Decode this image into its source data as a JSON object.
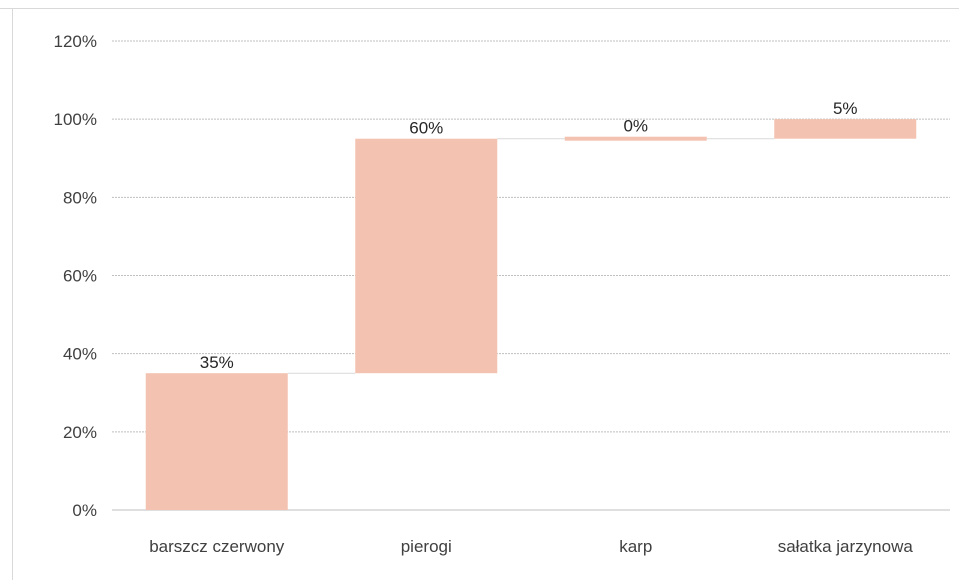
{
  "chart_data": {
    "type": "bar",
    "subtype": "waterfall",
    "categories": [
      "barszcz czerwony",
      "pierogi",
      "karp",
      "sałatka jarzynowa"
    ],
    "values": [
      35,
      60,
      0,
      5
    ],
    "data_labels": [
      "35%",
      "60%",
      "0%",
      "5%"
    ],
    "ylim": [
      0,
      120
    ],
    "y_ticks": [
      0,
      20,
      40,
      60,
      80,
      100,
      120
    ],
    "y_tick_labels": [
      "0%",
      "20%",
      "40%",
      "60%",
      "80%",
      "100%",
      "120%"
    ],
    "grid": true,
    "bar_color": "#f4c2b0",
    "gridline_color": "#bfbfbf",
    "connector_color": "#d9d9d9"
  }
}
